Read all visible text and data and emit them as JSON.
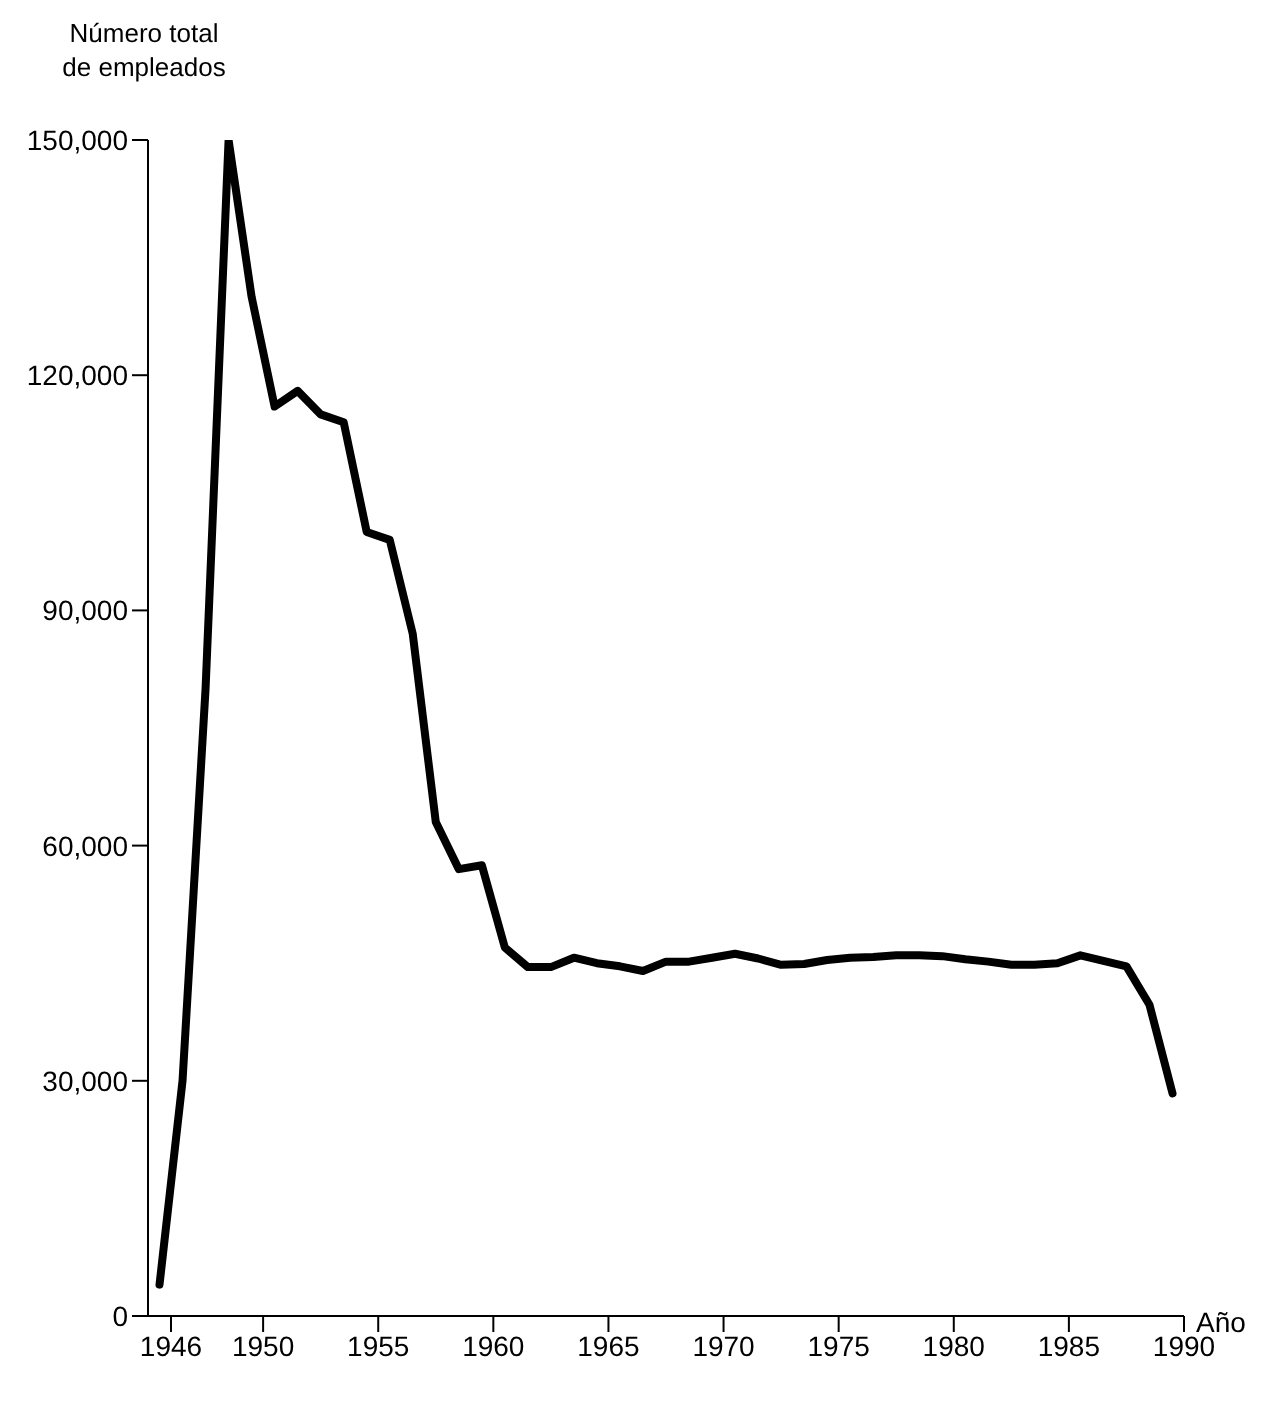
{
  "chart_data": {
    "type": "line",
    "xlabel": "Año",
    "ylabel": "Número total de empleados",
    "x": [
      1945.5,
      1946.5,
      1947.5,
      1948.5,
      1949.5,
      1950.5,
      1951.5,
      1952.5,
      1953.5,
      1954.5,
      1955.5,
      1956.5,
      1957.5,
      1958.5,
      1959.5,
      1960.5,
      1961.5,
      1962.5,
      1963.5,
      1964.5,
      1965.5,
      1966.5,
      1967.5,
      1968.5,
      1969.5,
      1970.5,
      1971.5,
      1972.5,
      1973.5,
      1974.5,
      1975.5,
      1976.5,
      1977.5,
      1978.5,
      1979.5,
      1980.5,
      1981.5,
      1982.5,
      1983.5,
      1984.5,
      1985.5,
      1986.5,
      1987.5,
      1988.5,
      1989.5
    ],
    "series": [
      {
        "color": "#000000",
        "values": [
          4000,
          30000,
          80000,
          150000,
          130000,
          116000,
          118000,
          115000,
          114000,
          100000,
          99000,
          87000,
          63000,
          57000,
          57500,
          47000,
          44500,
          44500,
          45700,
          45000,
          44600,
          44000,
          45200,
          45200,
          45700,
          46200,
          45600,
          44800,
          44900,
          45400,
          45700,
          45800,
          46000,
          46000,
          45900,
          45500,
          45200,
          44800,
          44800,
          45000,
          46000,
          45300,
          44600,
          39700,
          28400
        ]
      }
    ],
    "xlim": [
      1945,
      1990
    ],
    "xticks": [
      1946,
      1950,
      1955,
      1960,
      1965,
      1970,
      1975,
      1980,
      1985,
      1990
    ],
    "ylim": [
      0,
      150000
    ],
    "yticks": [
      0,
      {
        "value": 30000,
        "label": "30,000"
      },
      {
        "value": 60000,
        "label": "60,000"
      },
      {
        "value": 90000,
        "label": "90,000"
      },
      {
        "value": 120000,
        "label": "120,000"
      },
      {
        "value": 150000,
        "label": "150,000"
      }
    ],
    "grid": false,
    "legend": false,
    "marker": "none",
    "line_style": "solid"
  }
}
